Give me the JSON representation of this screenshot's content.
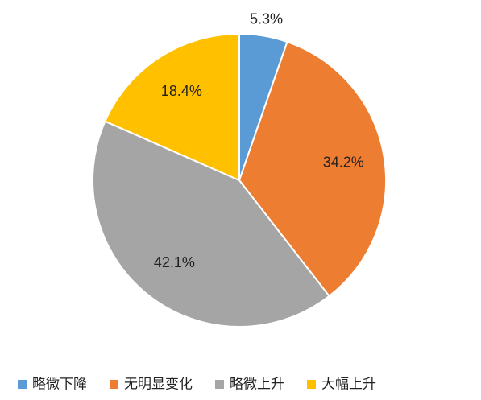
{
  "chart_data": {
    "type": "pie",
    "categories": [
      "略微下降",
      "无明显变化",
      "略微上升",
      "大幅上升"
    ],
    "values": [
      5.3,
      34.2,
      42.1,
      18.4
    ],
    "value_labels": [
      "5.3%",
      "34.2%",
      "42.1%",
      "18.4%"
    ],
    "colors": [
      "#5b9bd5",
      "#ed7d31",
      "#a5a5a5",
      "#ffc000"
    ],
    "legend": "bottom"
  }
}
